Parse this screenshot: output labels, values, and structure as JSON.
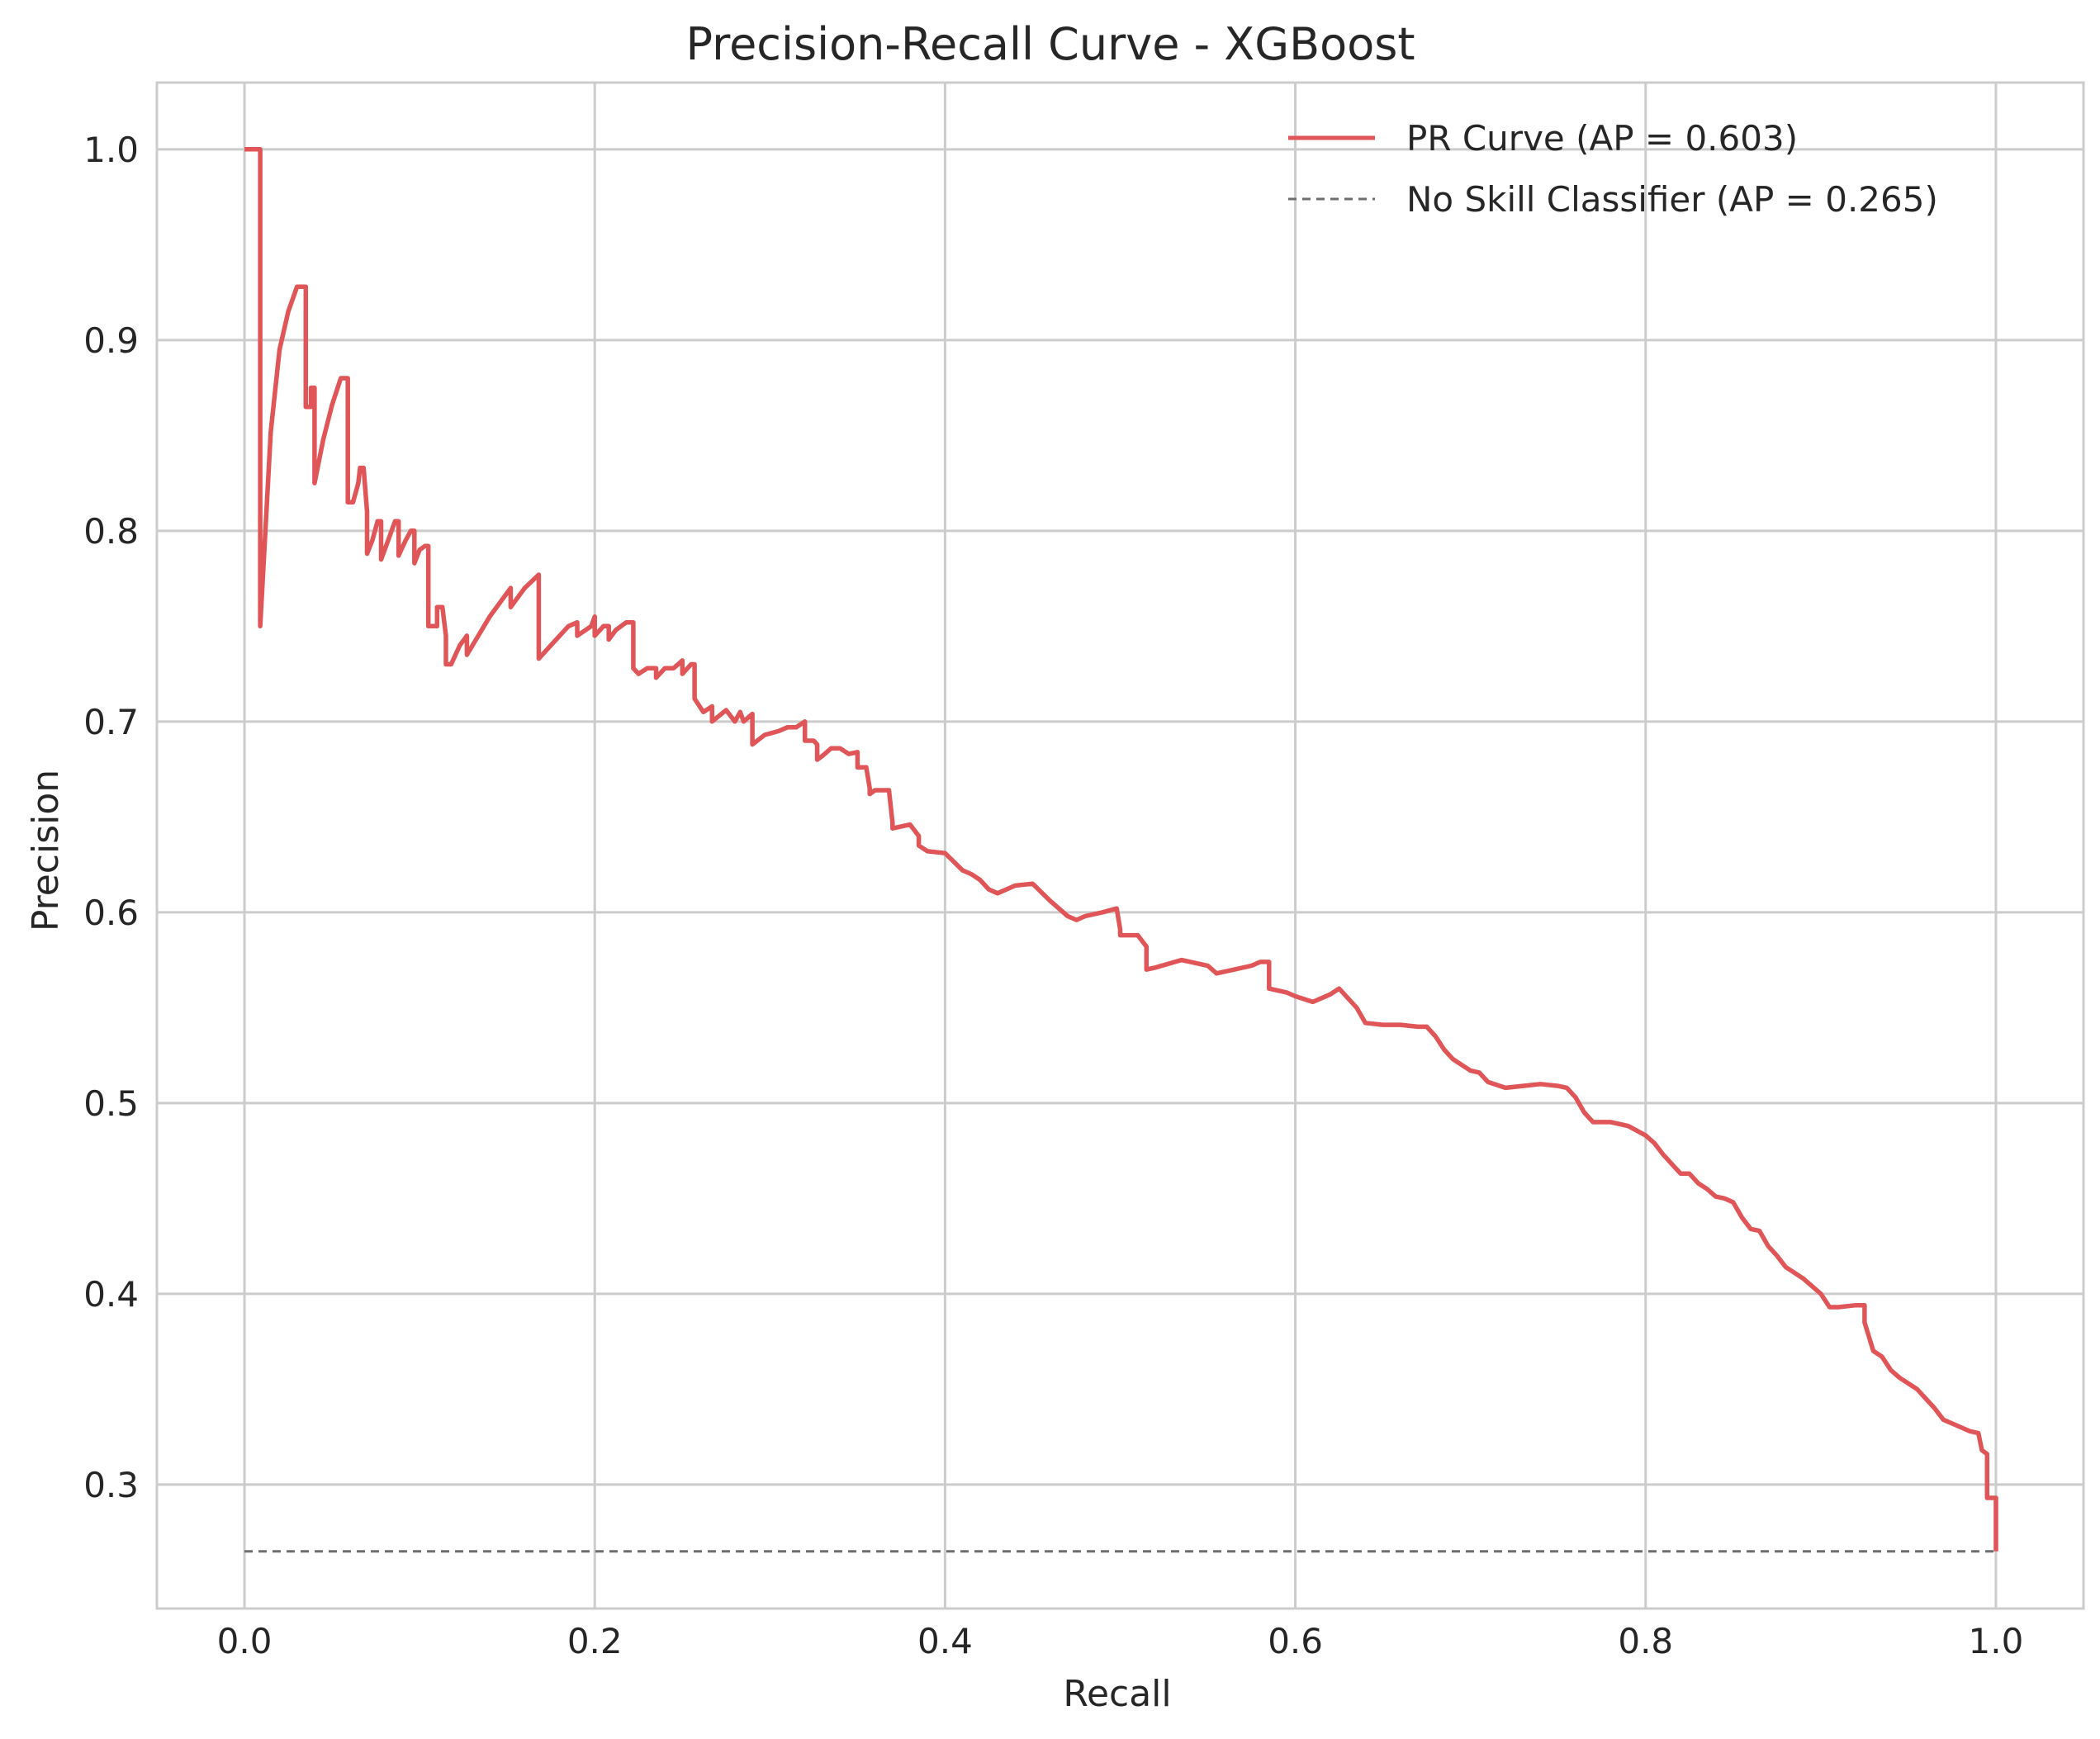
{
  "chart_data": {
    "type": "line",
    "title": "Precision-Recall Curve - XGBoost",
    "xlabel": "Recall",
    "ylabel": "Precision",
    "xlim": [
      -0.05,
      1.05
    ],
    "ylim": [
      0.235,
      1.035
    ],
    "grid": true,
    "legend_position": "top-right",
    "x_ticks": [
      "0.0",
      "0.2",
      "0.4",
      "0.6",
      "0.8",
      "1.0"
    ],
    "y_ticks": [
      "0.3",
      "0.4",
      "0.5",
      "0.6",
      "0.7",
      "0.8",
      "0.9",
      "1.0"
    ],
    "series": [
      {
        "name": "PR Curve (AP = 0.603)",
        "color": "#e05558",
        "style": "solid",
        "x": [
          0.0,
          0.009,
          0.009,
          0.009,
          0.015,
          0.02,
          0.025,
          0.03,
          0.035,
          0.035,
          0.038,
          0.038,
          0.04,
          0.04,
          0.045,
          0.05,
          0.055,
          0.059,
          0.059,
          0.062,
          0.065,
          0.066,
          0.068,
          0.07,
          0.07,
          0.073,
          0.076,
          0.078,
          0.078,
          0.082,
          0.086,
          0.088,
          0.088,
          0.092,
          0.095,
          0.097,
          0.097,
          0.1,
          0.103,
          0.105,
          0.105,
          0.11,
          0.11,
          0.113,
          0.115,
          0.115,
          0.118,
          0.123,
          0.127,
          0.127,
          0.14,
          0.152,
          0.152,
          0.16,
          0.168,
          0.168,
          0.175,
          0.185,
          0.19,
          0.19,
          0.198,
          0.2,
          0.2,
          0.205,
          0.208,
          0.208,
          0.212,
          0.218,
          0.222,
          0.222,
          0.225,
          0.23,
          0.235,
          0.235,
          0.24,
          0.245,
          0.25,
          0.25,
          0.255,
          0.257,
          0.257,
          0.262,
          0.267,
          0.267,
          0.275,
          0.28,
          0.283,
          0.285,
          0.29,
          0.29,
          0.297,
          0.305,
          0.31,
          0.315,
          0.32,
          0.32,
          0.325,
          0.327,
          0.327,
          0.33,
          0.335,
          0.34,
          0.345,
          0.35,
          0.35,
          0.355,
          0.357,
          0.357,
          0.36,
          0.368,
          0.37,
          0.37,
          0.38,
          0.385,
          0.385,
          0.39,
          0.4,
          0.41,
          0.415,
          0.42,
          0.425,
          0.43,
          0.44,
          0.45,
          0.46,
          0.47,
          0.475,
          0.48,
          0.49,
          0.498,
          0.5,
          0.5,
          0.51,
          0.515,
          0.515,
          0.52,
          0.535,
          0.545,
          0.55,
          0.555,
          0.565,
          0.575,
          0.58,
          0.585,
          0.585,
          0.595,
          0.6,
          0.61,
          0.62,
          0.625,
          0.635,
          0.64,
          0.65,
          0.66,
          0.67,
          0.675,
          0.68,
          0.685,
          0.69,
          0.7,
          0.705,
          0.71,
          0.72,
          0.73,
          0.74,
          0.75,
          0.755,
          0.76,
          0.765,
          0.77,
          0.78,
          0.79,
          0.8,
          0.805,
          0.81,
          0.815,
          0.82,
          0.825,
          0.83,
          0.835,
          0.84,
          0.845,
          0.85,
          0.855,
          0.86,
          0.865,
          0.87,
          0.875,
          0.88,
          0.885,
          0.89,
          0.9,
          0.905,
          0.91,
          0.92,
          0.925,
          0.925,
          0.93,
          0.935,
          0.94,
          0.945,
          0.95,
          0.955,
          0.96,
          0.965,
          0.97,
          0.975,
          0.98,
          0.985,
          0.99,
          0.992,
          0.995,
          0.995,
          1.0,
          1.0
        ],
        "y": [
          1.0,
          1.0,
          0.75,
          0.75,
          0.852,
          0.895,
          0.915,
          0.928,
          0.928,
          0.865,
          0.865,
          0.875,
          0.875,
          0.825,
          0.848,
          0.866,
          0.88,
          0.88,
          0.815,
          0.815,
          0.825,
          0.833,
          0.833,
          0.81,
          0.788,
          0.795,
          0.805,
          0.805,
          0.785,
          0.795,
          0.805,
          0.805,
          0.787,
          0.795,
          0.8,
          0.8,
          0.783,
          0.79,
          0.792,
          0.792,
          0.75,
          0.75,
          0.76,
          0.76,
          0.745,
          0.73,
          0.73,
          0.74,
          0.745,
          0.735,
          0.755,
          0.77,
          0.76,
          0.77,
          0.777,
          0.733,
          0.74,
          0.75,
          0.752,
          0.745,
          0.75,
          0.755,
          0.745,
          0.75,
          0.75,
          0.743,
          0.748,
          0.752,
          0.752,
          0.728,
          0.725,
          0.728,
          0.728,
          0.723,
          0.728,
          0.728,
          0.732,
          0.725,
          0.73,
          0.73,
          0.712,
          0.705,
          0.708,
          0.7,
          0.706,
          0.7,
          0.705,
          0.7,
          0.704,
          0.688,
          0.693,
          0.695,
          0.697,
          0.697,
          0.7,
          0.69,
          0.69,
          0.688,
          0.68,
          0.682,
          0.686,
          0.686,
          0.683,
          0.684,
          0.676,
          0.676,
          0.665,
          0.662,
          0.664,
          0.664,
          0.647,
          0.644,
          0.646,
          0.64,
          0.635,
          0.632,
          0.631,
          0.622,
          0.62,
          0.617,
          0.612,
          0.61,
          0.614,
          0.615,
          0.606,
          0.598,
          0.596,
          0.598,
          0.6,
          0.602,
          0.591,
          0.588,
          0.588,
          0.582,
          0.57,
          0.571,
          0.575,
          0.573,
          0.572,
          0.568,
          0.57,
          0.572,
          0.574,
          0.574,
          0.56,
          0.558,
          0.556,
          0.553,
          0.557,
          0.56,
          0.55,
          0.542,
          0.541,
          0.541,
          0.54,
          0.54,
          0.535,
          0.528,
          0.523,
          0.517,
          0.516,
          0.511,
          0.508,
          0.509,
          0.51,
          0.509,
          0.508,
          0.503,
          0.495,
          0.49,
          0.49,
          0.488,
          0.483,
          0.479,
          0.473,
          0.468,
          0.463,
          0.463,
          0.458,
          0.455,
          0.451,
          0.45,
          0.448,
          0.44,
          0.434,
          0.433,
          0.425,
          0.42,
          0.414,
          0.411,
          0.408,
          0.4,
          0.393,
          0.393,
          0.394,
          0.394,
          0.385,
          0.37,
          0.367,
          0.36,
          0.356,
          0.353,
          0.35,
          0.345,
          0.34,
          0.334,
          0.332,
          0.33,
          0.328,
          0.327,
          0.318,
          0.316,
          0.293,
          0.293,
          0.265
        ]
      },
      {
        "name": "No Skill Classifier (AP = 0.265)",
        "color": "#6e6e6e",
        "style": "dashed",
        "x": [
          0.0,
          1.0
        ],
        "y": [
          0.265,
          0.265
        ]
      }
    ]
  }
}
